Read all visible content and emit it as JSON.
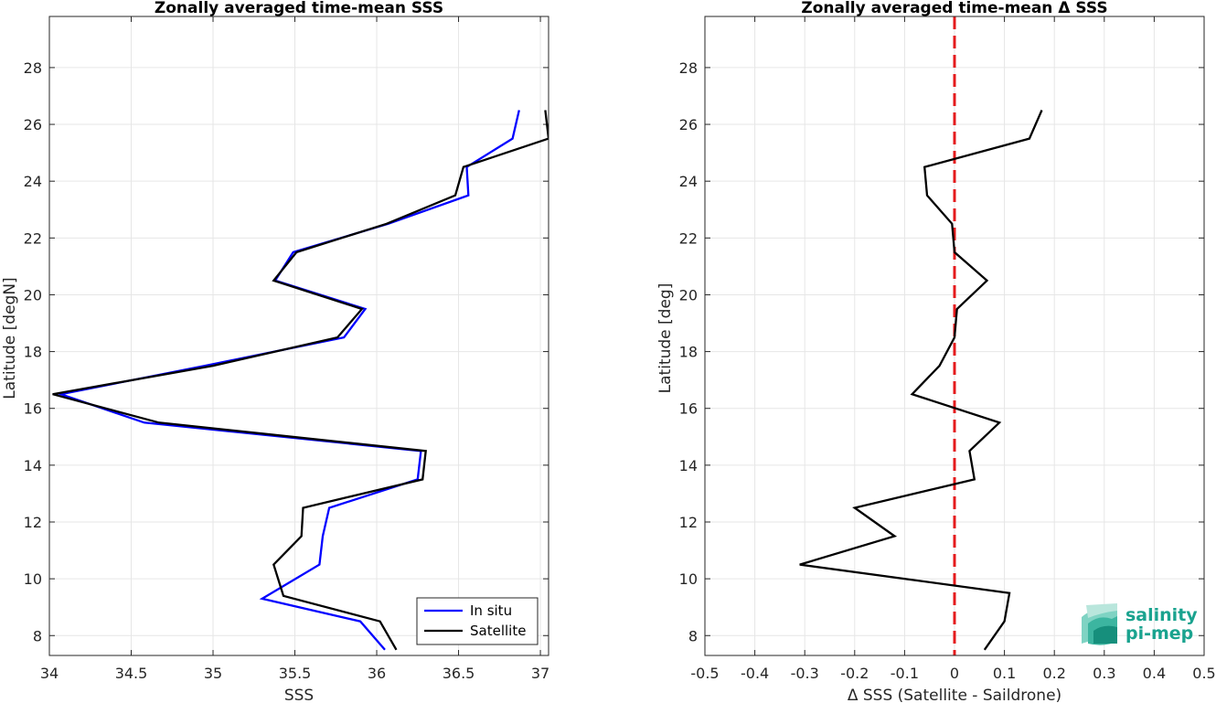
{
  "chart_data": [
    {
      "type": "line",
      "title": "Zonally averaged time-mean SSS",
      "xlabel": "SSS",
      "ylabel": "Latitude [degN]",
      "xlim": [
        34,
        37.05
      ],
      "ylim": [
        7.3,
        29.8
      ],
      "xticks": [
        "34",
        "34.5",
        "35",
        "35.5",
        "36",
        "36.5",
        "37"
      ],
      "yticks": [
        "8",
        "10",
        "12",
        "14",
        "16",
        "18",
        "20",
        "22",
        "24",
        "26",
        "28"
      ],
      "grid": true,
      "legend_position": "bottom-right",
      "series": [
        {
          "name": "In situ",
          "color": "#0000ff",
          "y": [
            7.5,
            8.5,
            9.3,
            10.5,
            11.5,
            12.5,
            13.5,
            14.5,
            15.5,
            16.5,
            17.5,
            18.5,
            19.5,
            20.5,
            21.5,
            22.5,
            23.5,
            24.5,
            25.5,
            26.5
          ],
          "x": [
            36.05,
            35.9,
            35.3,
            35.65,
            35.67,
            35.71,
            36.25,
            36.27,
            34.58,
            34.07,
            34.95,
            35.8,
            35.93,
            35.38,
            35.49,
            36.07,
            36.56,
            36.55,
            36.83,
            36.87
          ]
        },
        {
          "name": "Satellite",
          "color": "#000000",
          "y": [
            7.5,
            8.5,
            9.4,
            10.5,
            11.5,
            12.5,
            13.5,
            14.5,
            15.5,
            16.5,
            17.5,
            18.5,
            19.5,
            20.5,
            21.5,
            22.5,
            23.5,
            24.5,
            25.5,
            26.5
          ],
          "x": [
            36.12,
            36.02,
            35.43,
            35.37,
            35.54,
            35.55,
            36.28,
            36.3,
            34.67,
            34.02,
            35.0,
            35.76,
            35.91,
            35.37,
            35.51,
            36.06,
            36.48,
            36.53,
            37.05,
            37.03
          ]
        }
      ]
    },
    {
      "type": "line",
      "title": "Zonally averaged time-mean Δ SSS",
      "xlabel": "Δ SSS (Satellite - Saildrone)",
      "ylabel": "Latitude [deg]",
      "xlim": [
        -0.5,
        0.5
      ],
      "ylim": [
        7.3,
        29.8
      ],
      "xticks": [
        "-0.5",
        "-0.4",
        "-0.3",
        "-0.2",
        "-0.1",
        "0",
        "0.1",
        "0.2",
        "0.3",
        "0.4",
        "0.5"
      ],
      "yticks": [
        "8",
        "10",
        "12",
        "14",
        "16",
        "18",
        "20",
        "22",
        "24",
        "26",
        "28"
      ],
      "grid": true,
      "reference_line": {
        "x": 0,
        "color": "#e41a1c",
        "style": "dashed"
      },
      "series": [
        {
          "color": "#000000",
          "y": [
            7.5,
            8.5,
            9.5,
            10.5,
            11.5,
            12.5,
            13.5,
            14.5,
            15.5,
            16.5,
            17.5,
            18.5,
            19.5,
            20.5,
            21.5,
            22.5,
            23.5,
            24.5,
            25.5,
            26.5
          ],
          "x": [
            0.06,
            0.1,
            0.11,
            -0.31,
            -0.12,
            -0.2,
            0.04,
            0.03,
            0.09,
            -0.085,
            -0.03,
            0.0,
            0.005,
            0.065,
            0.0,
            -0.005,
            -0.055,
            -0.06,
            0.15,
            0.175
          ]
        }
      ]
    }
  ],
  "logo": {
    "line1": "salinity",
    "line2": "pi-mep",
    "color": "#1aa38f"
  }
}
